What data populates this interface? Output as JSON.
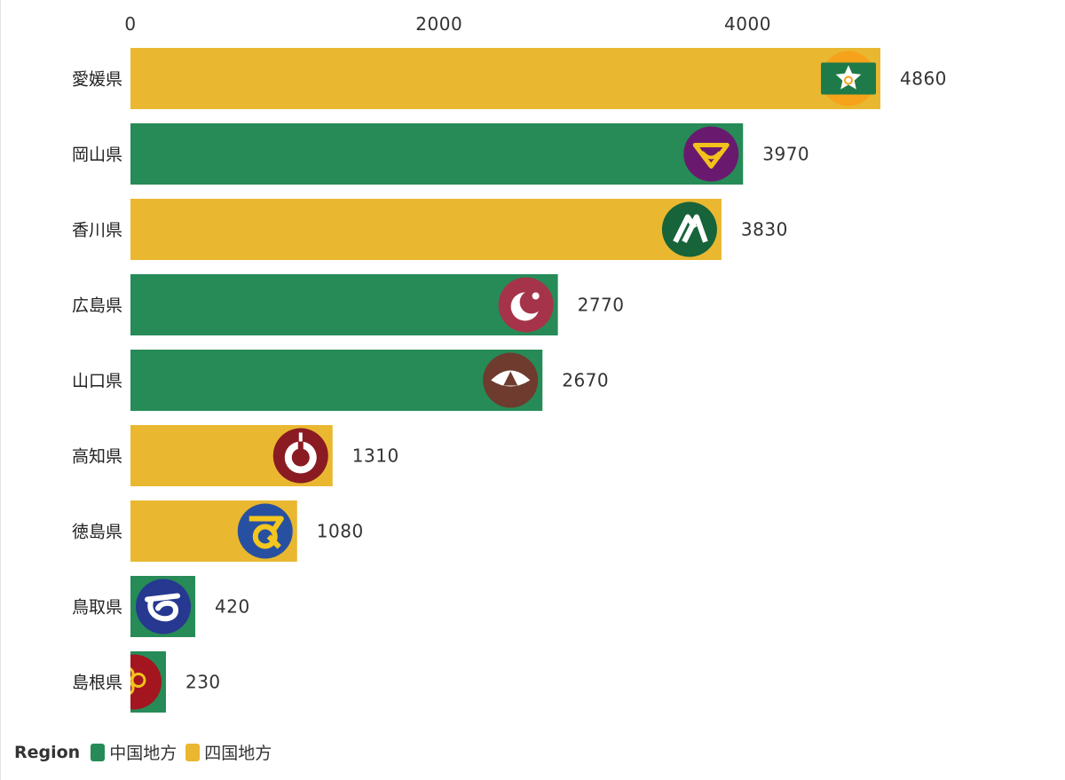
{
  "chart_data": {
    "type": "bar",
    "orientation": "horizontal",
    "x_ticks": [
      0,
      2000,
      4000
    ],
    "xlim": [
      0,
      4860
    ],
    "grid": false,
    "legend_position": "bottom-left",
    "legend_title": "Region",
    "regions": [
      {
        "name": "中国地方",
        "color": "#268b57"
      },
      {
        "name": "四国地方",
        "color": "#e9b830"
      }
    ],
    "categories": [
      "愛媛県",
      "岡山県",
      "香川県",
      "広島県",
      "山口県",
      "高知県",
      "徳島県",
      "鳥取県",
      "島根県"
    ],
    "values": [
      4860,
      3970,
      3830,
      2770,
      2670,
      1310,
      1080,
      420,
      230
    ],
    "bar_regions": [
      "四国地方",
      "中国地方",
      "四国地方",
      "中国地方",
      "中国地方",
      "四国地方",
      "四国地方",
      "中国地方",
      "中国地方"
    ],
    "emblems": [
      "ehime-emblem-icon",
      "okayama-emblem-icon",
      "kagawa-emblem-icon",
      "hiroshima-emblem-icon",
      "yamaguchi-emblem-icon",
      "kochi-emblem-icon",
      "tokushima-emblem-icon",
      "tottori-emblem-icon",
      "shimane-emblem-icon"
    ]
  }
}
